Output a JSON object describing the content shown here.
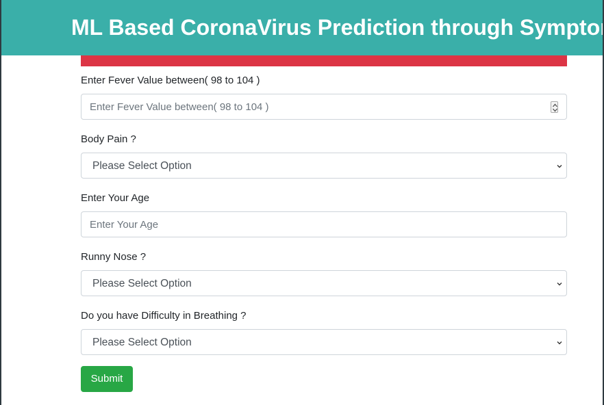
{
  "header": {
    "title": "ML Based CoronaVirus Prediction through Symptoms"
  },
  "form": {
    "fever": {
      "label": "Enter Fever Value between( 98 to 104 )",
      "placeholder": "Enter Fever Value between( 98 to 104 )"
    },
    "body_pain": {
      "label": "Body Pain ?",
      "selected": "Please Select Option"
    },
    "age": {
      "label": "Enter Your Age",
      "placeholder": "Enter Your Age"
    },
    "runny_nose": {
      "label": "Runny Nose ?",
      "selected": "Please Select Option"
    },
    "breathing": {
      "label": "Do you have Difficulty in Breathing ?",
      "selected": "Please Select Option"
    },
    "submit_label": "Submit"
  },
  "icons": {
    "spinner": "number-spinner-icon",
    "dropdown": "chevron-down-icon"
  },
  "colors": {
    "header_bg": "#3aafa9",
    "alert_bar": "#dc3545",
    "submit_bg": "#28a745"
  }
}
